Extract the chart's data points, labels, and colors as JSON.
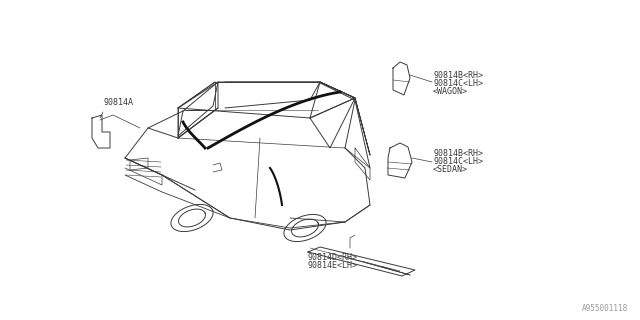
{
  "bg_color": "#ffffff",
  "line_color": "#3a3a3a",
  "text_color": "#3a3a3a",
  "part_number_A": "90814A",
  "label_wagon_1": "90814B<RH>",
  "label_wagon_2": "90814C<LH>",
  "label_wagon_3": "<WAGON>",
  "label_sedan_1": "90814B<RH>",
  "label_sedan_2": "90814C<LH>",
  "label_sedan_3": "<SEDAN>",
  "label_bottom_1": "90814D<RH>",
  "label_bottom_2": "90814E<LH>",
  "watermark": "A955001118",
  "font_size": 6.0
}
